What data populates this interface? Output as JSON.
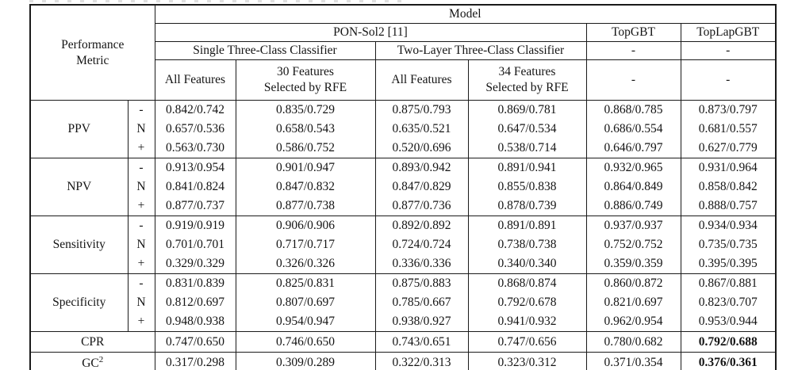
{
  "table": {
    "corner_label": "Performance\nMetric",
    "model_label": "Model",
    "model_row": {
      "ponsol2": "PON-Sol2 [11]",
      "topgbt": "TopGBT",
      "toplapgbt": "TopLapGBT"
    },
    "classifier_row": {
      "single": "Single Three-Class Classifier",
      "two_layer": "Two-Layer Three-Class Classifier",
      "topgbt_dash": "-",
      "toplapgbt_dash": "-"
    },
    "feature_row": {
      "col1": "All Features",
      "col2": "30 Features\nSelected by RFE",
      "col3": "All Features",
      "col4": "34 Features\nSelected by RFE",
      "col5": "-",
      "col6": "-"
    },
    "groups": [
      {
        "metric": "PPV",
        "rows": [
          {
            "sign": "-",
            "values": [
              "0.842/0.742",
              "0.835/0.729",
              "0.875/0.793",
              "0.869/0.781",
              "0.868/0.785",
              "0.873/0.797"
            ]
          },
          {
            "sign": "N",
            "values": [
              "0.657/0.536",
              "0.658/0.543",
              "0.635/0.521",
              "0.647/0.534",
              "0.686/0.554",
              "0.681/0.557"
            ]
          },
          {
            "sign": "+",
            "values": [
              "0.563/0.730",
              "0.586/0.752",
              "0.520/0.696",
              "0.538/0.714",
              "0.646/0.797",
              "0.627/0.779"
            ]
          }
        ]
      },
      {
        "metric": "NPV",
        "rows": [
          {
            "sign": "-",
            "values": [
              "0.913/0.954",
              "0.901/0.947",
              "0.893/0.942",
              "0.891/0.941",
              "0.932/0.965",
              "0.931/0.964"
            ]
          },
          {
            "sign": "N",
            "values": [
              "0.841/0.824",
              "0.847/0.832",
              "0.847/0.829",
              "0.855/0.838",
              "0.864/0.849",
              "0.858/0.842"
            ]
          },
          {
            "sign": "+",
            "values": [
              "0.877/0.737",
              "0.877/0.738",
              "0.877/0.736",
              "0.878/0.739",
              "0.886/0.749",
              "0.888/0.757"
            ]
          }
        ]
      },
      {
        "metric": "Sensitivity",
        "rows": [
          {
            "sign": "-",
            "values": [
              "0.919/0.919",
              "0.906/0.906",
              "0.892/0.892",
              "0.891/0.891",
              "0.937/0.937",
              "0.934/0.934"
            ]
          },
          {
            "sign": "N",
            "values": [
              "0.701/0.701",
              "0.717/0.717",
              "0.724/0.724",
              "0.738/0.738",
              "0.752/0.752",
              "0.735/0.735"
            ]
          },
          {
            "sign": "+",
            "values": [
              "0.329/0.329",
              "0.326/0.326",
              "0.336/0.336",
              "0.340/0.340",
              "0.359/0.359",
              "0.395/0.395"
            ]
          }
        ]
      },
      {
        "metric": "Specificity",
        "rows": [
          {
            "sign": "-",
            "values": [
              "0.831/0.839",
              "0.825/0.831",
              "0.875/0.883",
              "0.868/0.874",
              "0.860/0.872",
              "0.867/0.881"
            ]
          },
          {
            "sign": "N",
            "values": [
              "0.812/0.697",
              "0.807/0.697",
              "0.785/0.667",
              "0.792/0.678",
              "0.821/0.697",
              "0.823/0.707"
            ]
          },
          {
            "sign": "+",
            "values": [
              "0.948/0.938",
              "0.954/0.947",
              "0.938/0.927",
              "0.941/0.932",
              "0.962/0.954",
              "0.953/0.944"
            ]
          }
        ]
      }
    ],
    "summary_rows": [
      {
        "label": "CPR",
        "label_sup": "",
        "values": [
          "0.747/0.650",
          "0.746/0.650",
          "0.743/0.651",
          "0.747/0.656",
          "0.780/0.682",
          "0.792/0.688"
        ],
        "bold_cols": [
          5
        ]
      },
      {
        "label": "GC",
        "label_sup": "2",
        "values": [
          "0.317/0.298",
          "0.309/0.289",
          "0.322/0.313",
          "0.323/0.312",
          "0.371/0.354",
          "0.376/0.361"
        ],
        "bold_cols": [
          5
        ]
      }
    ]
  }
}
